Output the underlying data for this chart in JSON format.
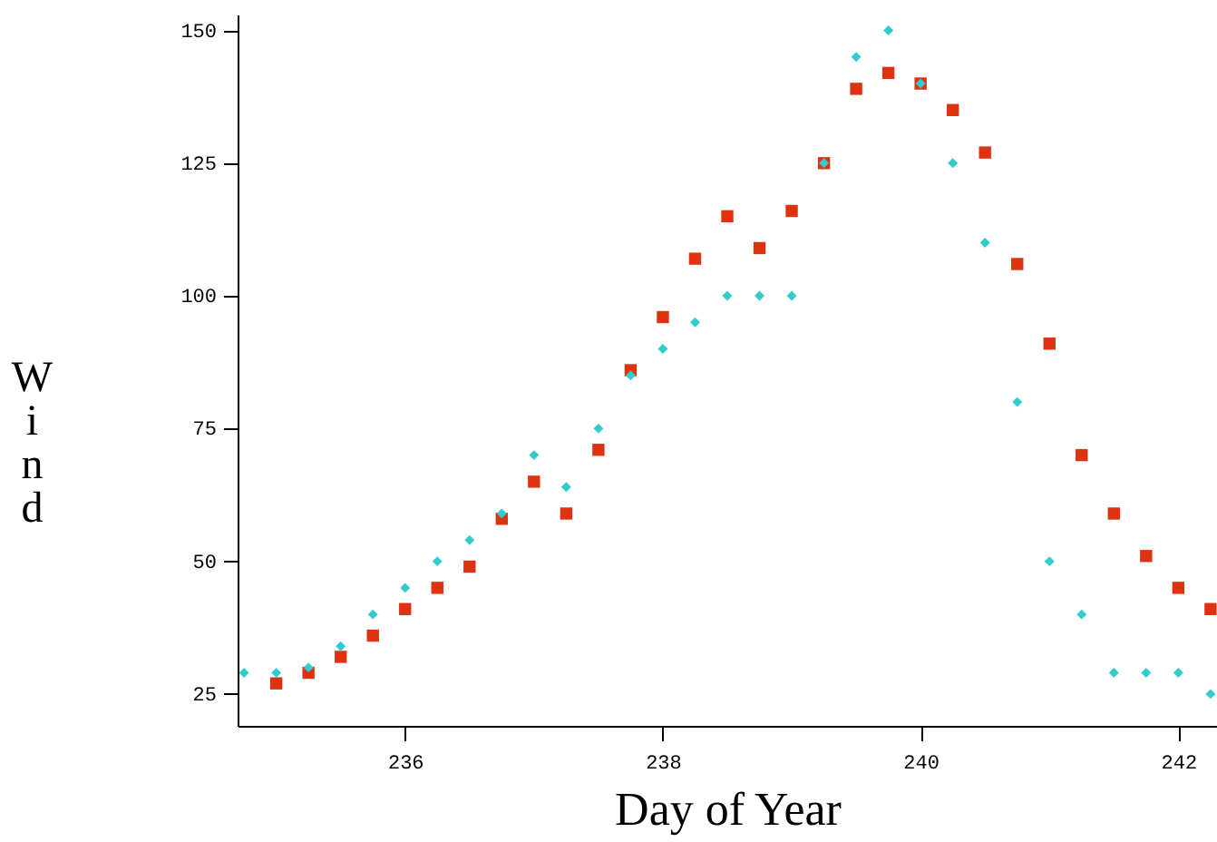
{
  "chart_data": {
    "type": "scatter",
    "xlabel": "Day of Year",
    "ylabel": "Wind",
    "xlim": [
      234.7,
      242.3
    ],
    "xticks": [
      236,
      238,
      240,
      242
    ],
    "ylim": [
      19,
      153
    ],
    "yticks": [
      25,
      50,
      75,
      100,
      125,
      150
    ],
    "grid": false,
    "series": [
      {
        "color": "#33cccc",
        "marker": "diamond",
        "x": [
          234.75,
          235,
          235.25,
          235.5,
          235.75,
          236,
          236.25,
          236.5,
          236.75,
          237,
          237.25,
          237.5,
          237.75,
          238,
          238.25,
          238.5,
          238.75,
          239,
          239.25,
          239.5,
          239.75,
          240,
          240.25,
          240.5,
          240.75,
          241,
          241.25,
          241.5,
          241.75,
          242,
          242.25
        ],
        "values": [
          29,
          29,
          30,
          34,
          40,
          45,
          50,
          54,
          59,
          70,
          64,
          75,
          85,
          90,
          95,
          100,
          100,
          100,
          125,
          145,
          150,
          140,
          125,
          110,
          80,
          50,
          40,
          29,
          29,
          29,
          25
        ]
      },
      {
        "color": "#dd3311",
        "marker": "square",
        "x": [
          235,
          235.25,
          235.5,
          235.75,
          236,
          236.25,
          236.5,
          236.75,
          237,
          237.25,
          237.5,
          237.75,
          238,
          238.25,
          238.5,
          238.75,
          239,
          239.25,
          239.5,
          239.75,
          240,
          240.25,
          240.5,
          240.75,
          241,
          241.25,
          241.5,
          241.75,
          242,
          242.25
        ],
        "values": [
          27,
          29,
          32,
          36,
          41,
          45,
          49,
          58,
          65,
          59,
          71,
          86,
          96,
          107,
          115,
          109,
          116,
          125,
          139,
          142,
          140,
          135,
          127,
          106,
          91,
          70,
          59,
          51,
          45,
          41
        ]
      }
    ]
  }
}
